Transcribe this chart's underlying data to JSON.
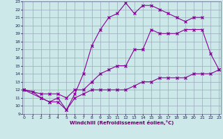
{
  "xlabel": "Windchill (Refroidissement éolien,°C)",
  "bg_color": "#cce8e8",
  "line_color": "#880099",
  "grid_color": "#99aabb",
  "xmin": 0,
  "xmax": 23,
  "ymin": 9,
  "ymax": 23,
  "series1": [
    [
      0,
      12
    ],
    [
      1,
      11.8
    ],
    [
      2,
      11
    ],
    [
      3,
      10.5
    ],
    [
      4,
      10.5
    ],
    [
      5,
      9.5
    ],
    [
      6,
      11
    ],
    [
      7,
      11.5
    ],
    [
      8,
      12
    ],
    [
      9,
      12
    ],
    [
      10,
      12
    ],
    [
      11,
      12
    ],
    [
      12,
      12
    ],
    [
      13,
      12.5
    ],
    [
      14,
      13
    ],
    [
      15,
      13
    ],
    [
      16,
      13.5
    ],
    [
      17,
      13.5
    ],
    [
      18,
      13.5
    ],
    [
      19,
      13.5
    ],
    [
      20,
      14
    ],
    [
      21,
      14
    ],
    [
      22,
      14
    ],
    [
      23,
      14.5
    ]
  ],
  "series2": [
    [
      0,
      12
    ],
    [
      2,
      11.5
    ],
    [
      3,
      11.5
    ],
    [
      4,
      11.5
    ],
    [
      5,
      11
    ],
    [
      6,
      12
    ],
    [
      7,
      12
    ],
    [
      8,
      13
    ],
    [
      9,
      14
    ],
    [
      10,
      14.5
    ],
    [
      11,
      15
    ],
    [
      12,
      15
    ],
    [
      13,
      17
    ],
    [
      14,
      17
    ],
    [
      15,
      19.5
    ],
    [
      16,
      19
    ],
    [
      17,
      19
    ],
    [
      18,
      19
    ],
    [
      19,
      19.5
    ],
    [
      20,
      19.5
    ],
    [
      21,
      19.5
    ],
    [
      22,
      16.5
    ],
    [
      23,
      14.5
    ]
  ],
  "series3": [
    [
      0,
      12
    ],
    [
      2,
      11
    ],
    [
      3,
      10.5
    ],
    [
      4,
      11
    ],
    [
      5,
      9.5
    ],
    [
      6,
      11.5
    ],
    [
      7,
      14
    ],
    [
      8,
      17.5
    ],
    [
      9,
      19.5
    ],
    [
      10,
      21
    ],
    [
      11,
      21.5
    ],
    [
      12,
      22.8
    ],
    [
      13,
      21.5
    ],
    [
      14,
      22.5
    ],
    [
      15,
      22.5
    ],
    [
      16,
      22
    ],
    [
      17,
      21.5
    ],
    [
      18,
      21
    ],
    [
      19,
      20.5
    ],
    [
      20,
      21
    ],
    [
      21,
      21
    ]
  ]
}
